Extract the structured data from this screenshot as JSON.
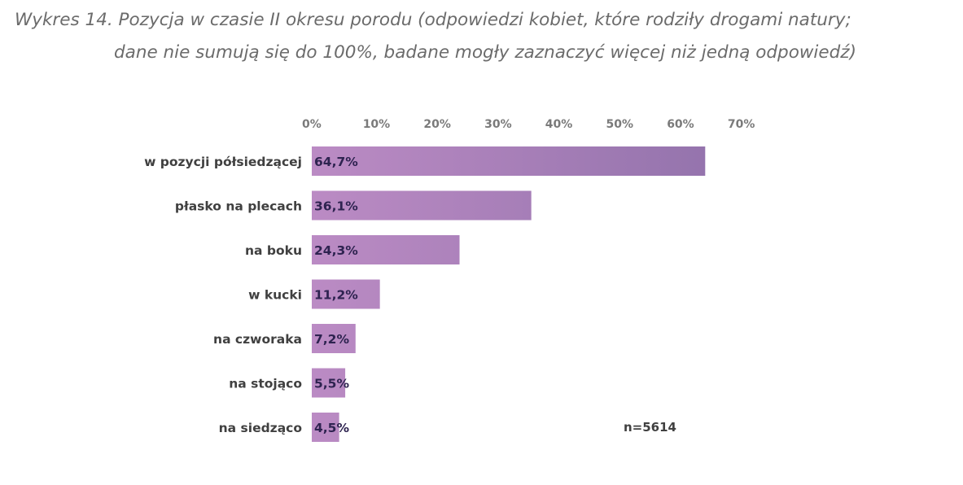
{
  "title": {
    "line1": "Wykres 14. Pozycja w czasie II okresu porodu (odpowiedzi kobiet, które rodziły drogami natury;",
    "line2": "dane nie sumują się do 100%, badane mogły zaznaczyć więcej niż jedną odpowiedź)"
  },
  "chart_data": {
    "type": "bar",
    "orientation": "horizontal",
    "categories": [
      "w pozycji półsiedzącej",
      "płasko na plecach",
      "na boku",
      "w kucki",
      "na czworaka",
      "na stojąco",
      "na siedząco"
    ],
    "values": [
      64.7,
      36.1,
      24.3,
      11.2,
      7.2,
      5.5,
      4.5
    ],
    "value_labels": [
      "64,7%",
      "36,1%",
      "24,3%",
      "11,2%",
      "7,2%",
      "5,5%",
      "4,5%"
    ],
    "x_ticks": [
      "0%",
      "10%",
      "20%",
      "30%",
      "40%",
      "50%",
      "60%",
      "70%"
    ],
    "xlim": [
      0,
      70
    ],
    "axis_position": "top",
    "grid": false,
    "annotation": "n=5614",
    "colors": {
      "bar_light": "#bb8bc4",
      "bar_dark": "#9574ad",
      "value_label": "#2e2350"
    }
  }
}
